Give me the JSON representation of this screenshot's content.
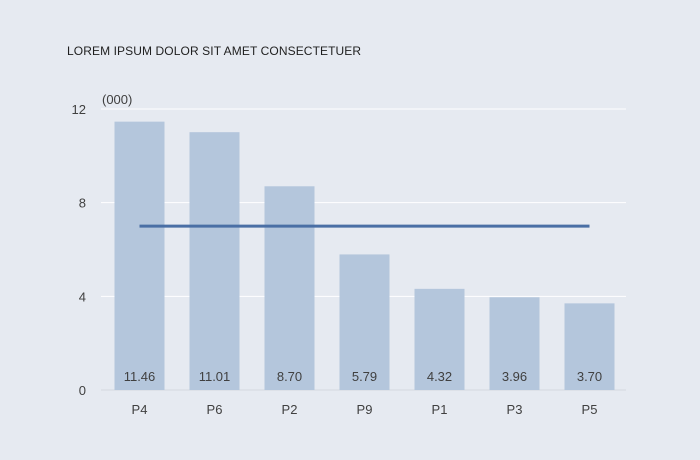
{
  "chart_data": {
    "type": "bar",
    "title": "LOREM IPSUM DOLOR SIT AMET CONSECTETUER",
    "unit_label": "(000)",
    "categories": [
      "P4",
      "P6",
      "P2",
      "P9",
      "P1",
      "P3",
      "P5"
    ],
    "values": [
      11.46,
      11.01,
      8.7,
      5.79,
      4.32,
      3.96,
      3.7
    ],
    "value_labels": [
      "11.46",
      "11.01",
      "8.70",
      "5.79",
      "4.32",
      "3.96",
      "3.70"
    ],
    "reference_line": 7.0,
    "ylim": [
      0,
      12
    ],
    "yticks": [
      0,
      4,
      8,
      12
    ],
    "grid": true,
    "colors": {
      "bar": "#b4c6dc",
      "line": "#4a6fa5",
      "grid": "#ffffff",
      "background": "#e6eaf1"
    }
  }
}
